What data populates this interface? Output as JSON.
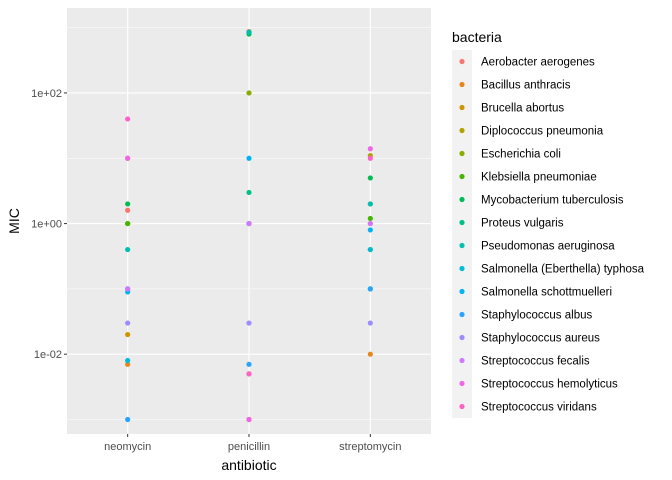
{
  "chart_data": {
    "type": "scatter",
    "xlabel": "antibiotic",
    "ylabel": "MIC",
    "yscale": "log10",
    "ylim": [
      0.0006,
      2000
    ],
    "y_ticks": [
      {
        "value": 0.01,
        "label": "1e-02"
      },
      {
        "value": 1,
        "label": "1e+00"
      },
      {
        "value": 100,
        "label": "1e+02"
      }
    ],
    "categories": [
      "neomycin",
      "penicillin",
      "streptomycin"
    ],
    "legend_title": "bacteria",
    "legend_position": "right",
    "grid": true,
    "series": [
      {
        "name": "Aerobacter aerogenes",
        "color": "#F8766D",
        "values": [
          1.6,
          870,
          1
        ]
      },
      {
        "name": "Bacillus anthracis",
        "color": "#E7861A",
        "values": [
          0.007,
          0.001,
          0.01
        ]
      },
      {
        "name": "Brucella abortus",
        "color": "#D09400",
        "values": [
          0.02,
          1,
          2
        ]
      },
      {
        "name": "Diplococcus pneumonia",
        "color": "#B2A100",
        "values": [
          10,
          0.005,
          11
        ]
      },
      {
        "name": "Escherichia coli",
        "color": "#89AC00",
        "values": [
          1,
          100,
          0.4
        ]
      },
      {
        "name": "Klebsiella pneumoniae",
        "color": "#45B500",
        "values": [
          1,
          850,
          1.2
        ]
      },
      {
        "name": "Mycobacterium tuberculosis",
        "color": "#00BC51",
        "values": [
          2,
          800,
          5
        ]
      },
      {
        "name": "Proteus vulgaris",
        "color": "#00C087",
        "values": [
          0.1,
          3,
          0.1
        ]
      },
      {
        "name": "Pseudomonas aeruginosa",
        "color": "#00C0B2",
        "values": [
          0.4,
          850,
          2
        ]
      },
      {
        "name": "Salmonella (Eberthella) typhosa",
        "color": "#00BCD6",
        "values": [
          0.008,
          1,
          0.4
        ]
      },
      {
        "name": "Salmonella schottmuelleri",
        "color": "#00B3F2",
        "values": [
          0.09,
          10,
          0.8
        ]
      },
      {
        "name": "Staphylococcus albus",
        "color": "#29A3FF",
        "values": [
          0.001,
          0.007,
          0.1
        ]
      },
      {
        "name": "Staphylococcus aureus",
        "color": "#9C8DFF",
        "values": [
          0.03,
          0.03,
          0.03
        ]
      },
      {
        "name": "Streptococcus fecalis",
        "color": "#D277FF",
        "values": [
          0.1,
          1,
          1
        ]
      },
      {
        "name": "Streptococcus hemolyticus",
        "color": "#F166E8",
        "values": [
          10,
          0.001,
          14
        ]
      },
      {
        "name": "Streptococcus viridans",
        "color": "#FF61C7",
        "values": [
          40,
          0.005,
          10
        ]
      }
    ]
  }
}
